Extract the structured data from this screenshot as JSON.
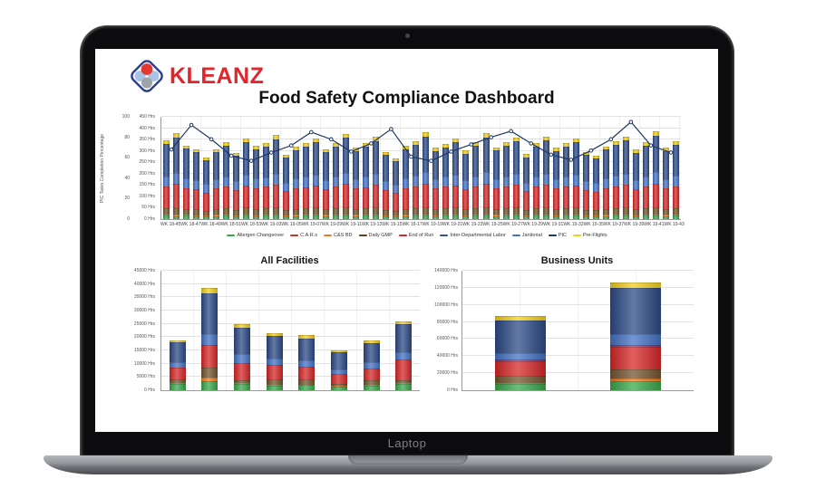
{
  "device": {
    "label": "Laptop"
  },
  "logo": {
    "text": "KLEANZ",
    "text_color": "#e0262c",
    "diamond_border": "#2b3f8c",
    "circle_top": "#e23a30",
    "circle_left": "#a9c3e6",
    "circle_right": "#a9c3e6",
    "circle_bottom": "#9fa3a8"
  },
  "title": "Food Safety Compliance Dashboard",
  "legend": [
    {
      "label": "Allergen Changeover",
      "color": "#3aa74a"
    },
    {
      "label": "C.A.R.s",
      "color": "#c0392b"
    },
    {
      "label": "C&S BD",
      "color": "#ef7d22"
    },
    {
      "label": "Daily GMP",
      "color": "#5a4420"
    },
    {
      "label": "End of Run",
      "color": "#d62728"
    },
    {
      "label": "Inter-Departmental Labor",
      "color": "#33518e"
    },
    {
      "label": "Janitorial",
      "color": "#4472c4"
    },
    {
      "label": "PIC",
      "color": "#1f3864"
    },
    {
      "label": "Pre-Flights",
      "color": "#f2cf1d"
    }
  ],
  "chart_data": {
    "top_chart": {
      "type": "bar",
      "subtype": "stacked-bars-with-line",
      "y_axis_pct": {
        "title": "PIC Tasks Completion Percentage",
        "max": 100,
        "step": 20,
        "suffix": ""
      },
      "y_axis_hrs": {
        "max": 450,
        "step": 50,
        "suffix": " Hrs"
      },
      "week_labels": [
        "WK 18-45",
        "WK 18-47",
        "WK 18-49",
        "WK 18-51",
        "WK 18-53",
        "WK 19-03",
        "WK 19-05",
        "WK 19-07",
        "WK 19-09",
        "WK 19-11",
        "WK 19-13",
        "WK 19-15",
        "WK 19-17",
        "WK 19-19",
        "WK 19-21",
        "WK 19-23",
        "WK 19-25",
        "WK 19-27",
        "WK 19-29",
        "WK 19-31",
        "WK 19-33",
        "WK 19-35",
        "WK 19-37",
        "WK 19-39",
        "WK 19-41",
        "WK 19-43"
      ],
      "series_order": [
        "Allergen Changeover",
        "C&S BD",
        "Daily GMP",
        "End of Run",
        "Janitorial",
        "PIC",
        "Pre-Flights"
      ],
      "series_colors": [
        "#3aa74a",
        "#ef7d22",
        "#73552d",
        "#d62728",
        "#4472c4",
        "#2c4a86",
        "#f2cf1d"
      ],
      "bars_hrs": [
        [
          16,
          5,
          28,
          95,
          45,
          140,
          16
        ],
        [
          14,
          5,
          30,
          105,
          50,
          155,
          18
        ],
        [
          15,
          4,
          26,
          92,
          44,
          128,
          15
        ],
        [
          13,
          5,
          24,
          88,
          42,
          122,
          14
        ],
        [
          12,
          4,
          20,
          80,
          38,
          105,
          13
        ],
        [
          14,
          5,
          26,
          90,
          40,
          118,
          15
        ],
        [
          15,
          4,
          28,
          96,
          46,
          135,
          16
        ],
        [
          13,
          5,
          22,
          86,
          40,
          112,
          14
        ],
        [
          16,
          5,
          30,
          98,
          48,
          142,
          17
        ],
        [
          14,
          4,
          26,
          92,
          44,
          126,
          15
        ],
        [
          15,
          5,
          28,
          95,
          42,
          133,
          16
        ],
        [
          16,
          5,
          30,
          100,
          50,
          150,
          18
        ],
        [
          13,
          4,
          22,
          84,
          38,
          110,
          14
        ],
        [
          14,
          5,
          26,
          90,
          44,
          124,
          15
        ],
        [
          15,
          4,
          28,
          94,
          46,
          132,
          16
        ],
        [
          16,
          5,
          30,
          98,
          48,
          140,
          17
        ],
        [
          14,
          5,
          24,
          88,
          42,
          120,
          15
        ],
        [
          15,
          4,
          28,
          95,
          44,
          134,
          16
        ],
        [
          16,
          5,
          32,
          102,
          50,
          152,
          18
        ],
        [
          14,
          5,
          26,
          90,
          42,
          122,
          15
        ],
        [
          15,
          4,
          28,
          94,
          46,
          130,
          16
        ],
        [
          16,
          5,
          30,
          100,
          48,
          145,
          17
        ],
        [
          13,
          4,
          24,
          86,
          40,
          114,
          14
        ],
        [
          12,
          4,
          20,
          80,
          36,
          104,
          13
        ],
        [
          14,
          5,
          26,
          92,
          44,
          126,
          15
        ],
        [
          15,
          5,
          28,
          96,
          46,
          136,
          16
        ],
        [
          16,
          5,
          32,
          104,
          50,
          156,
          18
        ],
        [
          14,
          4,
          26,
          90,
          42,
          122,
          15
        ],
        [
          15,
          5,
          28,
          94,
          44,
          130,
          16
        ],
        [
          16,
          5,
          30,
          98,
          48,
          142,
          17
        ],
        [
          14,
          4,
          24,
          88,
          40,
          118,
          15
        ],
        [
          15,
          5,
          28,
          95,
          46,
          134,
          16
        ],
        [
          16,
          5,
          32,
          103,
          50,
          154,
          18
        ],
        [
          14,
          5,
          26,
          90,
          42,
          124,
          15
        ],
        [
          15,
          4,
          28,
          96,
          46,
          135,
          16
        ],
        [
          16,
          5,
          30,
          99,
          48,
          144,
          17
        ],
        [
          13,
          4,
          22,
          84,
          38,
          112,
          14
        ],
        [
          15,
          5,
          28,
          94,
          44,
          131,
          16
        ],
        [
          16,
          5,
          30,
          100,
          48,
          146,
          17
        ],
        [
          14,
          4,
          26,
          90,
          42,
          123,
          15
        ],
        [
          15,
          5,
          28,
          95,
          44,
          133,
          16
        ],
        [
          16,
          5,
          30,
          98,
          48,
          141,
          17
        ],
        [
          13,
          4,
          24,
          86,
          40,
          115,
          14
        ],
        [
          12,
          4,
          22,
          82,
          38,
          108,
          13
        ],
        [
          14,
          5,
          26,
          91,
          44,
          125,
          15
        ],
        [
          15,
          5,
          28,
          96,
          46,
          137,
          16
        ],
        [
          16,
          5,
          30,
          100,
          48,
          147,
          17
        ],
        [
          14,
          4,
          24,
          88,
          42,
          120,
          15
        ],
        [
          15,
          5,
          28,
          95,
          46,
          134,
          16
        ],
        [
          16,
          5,
          32,
          104,
          52,
          158,
          18
        ],
        [
          14,
          5,
          26,
          90,
          42,
          123,
          15
        ],
        [
          15,
          5,
          28,
          96,
          46,
          138,
          16
        ]
      ],
      "line_pct": [
        68,
        92,
        78,
        62,
        57,
        65,
        72,
        85,
        78,
        66,
        74,
        88,
        61,
        57,
        66,
        73,
        80,
        86,
        74,
        63,
        58,
        67,
        78,
        95,
        72,
        65
      ],
      "line_color": "#1f3864"
    },
    "all_facilities": {
      "type": "bar",
      "subtype": "stacked",
      "title": "All Facilities",
      "y_axis": {
        "max": 45000,
        "step": 5000,
        "suffix": " Hrs"
      },
      "series_order": [
        "Allergen Changeover",
        "C&S BD",
        "Daily GMP",
        "End of Run",
        "Janitorial",
        "PIC",
        "Pre-Flights"
      ],
      "series_colors": [
        "#3aa74a",
        "#ef7d22",
        "#73552d",
        "#d62728",
        "#4472c4",
        "#2c4a86",
        "#f2cf1d"
      ],
      "bars_hrs": [
        [
          2300,
          400,
          1500,
          4300,
          2000,
          7500,
          800
        ],
        [
          3400,
          1300,
          4000,
          8300,
          4000,
          15500,
          2000
        ],
        [
          2400,
          300,
          900,
          6800,
          3100,
          10100,
          1200
        ],
        [
          1600,
          300,
          2300,
          5200,
          2600,
          8400,
          1100
        ],
        [
          1900,
          300,
          2000,
          4800,
          2400,
          8100,
          1200
        ],
        [
          1300,
          250,
          1000,
          3750,
          1600,
          6400,
          700
        ],
        [
          1600,
          300,
          1900,
          4300,
          2500,
          7200,
          1000
        ],
        [
          2300,
          400,
          1000,
          7800,
          3000,
          10300,
          1200
        ]
      ]
    },
    "business_units": {
      "type": "bar",
      "subtype": "stacked",
      "title": "Business Units",
      "y_axis": {
        "max": 140000,
        "step": 20000,
        "suffix": " Hrs"
      },
      "series_order": [
        "Allergen Changeover",
        "C&S BD",
        "Daily GMP",
        "End of Run",
        "C.A.R.s",
        "Janitorial",
        "PIC",
        "Pre-Flights"
      ],
      "series_colors": [
        "#3aa74a",
        "#ef7d22",
        "#73552d",
        "#d62728",
        "#8e3a66",
        "#4472c4",
        "#2c4a86",
        "#f2cf1d"
      ],
      "bars_hrs": [
        [
          7000,
          2000,
          8500,
          17000,
          1500,
          8000,
          38000,
          5000
        ],
        [
          11000,
          3000,
          10000,
          27000,
          2000,
          13000,
          54000,
          6000
        ]
      ]
    }
  }
}
